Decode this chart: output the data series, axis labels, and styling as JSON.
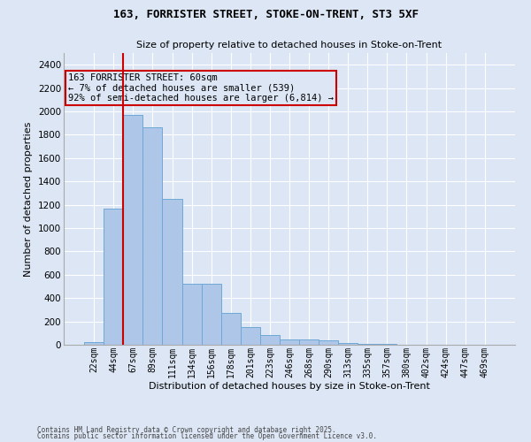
{
  "title1": "163, FORRISTER STREET, STOKE-ON-TRENT, ST3 5XF",
  "title2": "Size of property relative to detached houses in Stoke-on-Trent",
  "xlabel": "Distribution of detached houses by size in Stoke-on-Trent",
  "ylabel": "Number of detached properties",
  "categories": [
    "22sqm",
    "44sqm",
    "67sqm",
    "89sqm",
    "111sqm",
    "134sqm",
    "156sqm",
    "178sqm",
    "201sqm",
    "223sqm",
    "246sqm",
    "268sqm",
    "290sqm",
    "313sqm",
    "335sqm",
    "357sqm",
    "380sqm",
    "402sqm",
    "424sqm",
    "447sqm",
    "469sqm"
  ],
  "values": [
    25,
    1170,
    1970,
    1860,
    1250,
    520,
    520,
    270,
    155,
    85,
    45,
    45,
    35,
    15,
    8,
    8,
    3,
    3,
    2,
    2,
    2
  ],
  "bar_color": "#aec6e8",
  "bar_edge_color": "#6fa8d6",
  "red_line_x": 1.5,
  "highlight_bar_color": "#cc0000",
  "annotation_title": "163 FORRISTER STREET: 60sqm",
  "annotation_line1": "← 7% of detached houses are smaller (539)",
  "annotation_line2": "92% of semi-detached houses are larger (6,814) →",
  "annotation_box_color": "#cc0000",
  "bg_color": "#dce6f5",
  "grid_color": "#c0cfe8",
  "ylim": [
    0,
    2500
  ],
  "yticks": [
    0,
    200,
    400,
    600,
    800,
    1000,
    1200,
    1400,
    1600,
    1800,
    2000,
    2200,
    2400
  ],
  "footer1": "Contains HM Land Registry data © Crown copyright and database right 2025.",
  "footer2": "Contains public sector information licensed under the Open Government Licence v3.0."
}
